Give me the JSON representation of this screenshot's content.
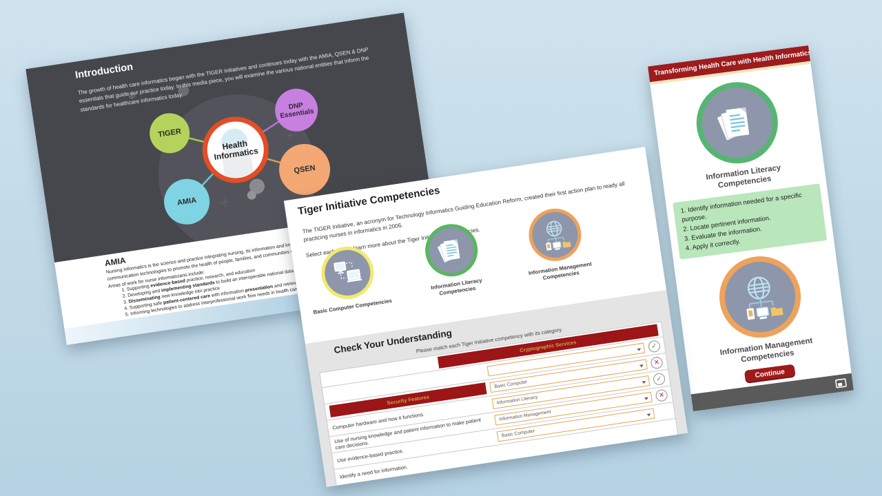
{
  "page": {
    "bg_top": "#cfe3ee",
    "bg_bottom": "#b5d2e2"
  },
  "intro_slide": {
    "heading": "Introduction",
    "body": "The growth of health care informatics began with the TIGER initiatives and continues today with the AMIA, QSEN & DNP essentials that guide our practice today. In this media piece, you will examine the various national entities that inform the standards for healthcare informatics today.",
    "slide_bg": "#46474d",
    "diagram": {
      "center_label": "Health Informatics",
      "center_ring_color": "#e44d26",
      "nodes": [
        {
          "label": "TIGER",
          "color": "#b5d35c"
        },
        {
          "label": "DNP Essentials",
          "color": "#c77fe0"
        },
        {
          "label": "QSEN",
          "color": "#f4a873"
        },
        {
          "label": "AMIA",
          "color": "#7fd4e4"
        }
      ]
    },
    "amia": {
      "heading": "AMIA",
      "intro": "Nursing Informatics is the science and practice integrating nursing, its information and knowledge, with management of information and communication technologies to promote the health of people, families, and communities worldwide.",
      "areas_label": "Areas of work for nurse informaticians include:",
      "items": [
        {
          "s0": "Supporting ",
          "b0": "evidence-based",
          "s1": " practice, research, and education",
          "b1": "",
          "s2": ""
        },
        {
          "s0": "Developing and ",
          "b0": "implementing standards",
          "s1": " to build an interoperable national data infrastructure",
          "b1": "",
          "s2": ""
        },
        {
          "s0": "",
          "b0": "Disseminating",
          "s1": " new knowledge into practice",
          "b1": "",
          "s2": ""
        },
        {
          "s0": "Supporting safe ",
          "b0": "patient-centered care",
          "s1": " with information ",
          "b1": "presentation",
          "s2": " and retrieval"
        },
        {
          "s0": "Informing technologies to address interprofessional work flow needs in health care",
          "b0": "",
          "s1": "",
          "b1": "",
          "s2": ""
        }
      ]
    }
  },
  "tiger_page": {
    "heading": "Tiger Initiative Competencies",
    "body": "The TIGER Initiative, an acronym for Technology Informatics Guiding Education Reform, created their first action plan to ready all practicing nurses in informatics in 2006.",
    "select_hint": "Select each link to learn more about the Tiger Initiative competencies.",
    "circle_fill": "#8d96ab",
    "competencies": [
      {
        "label": "Basic Computer Competencies",
        "ring_color": "#f2ea6e",
        "icon": "computers-icon"
      },
      {
        "label": "Information Literacy Competencies",
        "ring_color": "#58b85c",
        "icon": "documents-icon"
      },
      {
        "label": "Information Management Competencies",
        "ring_color": "#eea25b",
        "icon": "globe-network-icon"
      }
    ]
  },
  "quiz": {
    "heading": "Check Your Understanding",
    "instruction": "Please match each Tiger Initiative competency with its category.",
    "category_bar_1": "Cryptographic Services",
    "category_bar_2": "Security Features",
    "bar_bg": "#9c1517",
    "bar_text_color": "#cfa045",
    "correct_glyph": "✓",
    "incorrect_glyph": "✕",
    "correct_color": "#3a9d3a",
    "incorrect_color": "#d42a2a",
    "rows": [
      {
        "question": "",
        "answer": "",
        "result": "correct"
      },
      {
        "question": "",
        "answer": "Basic Computer",
        "result": "incorrect"
      },
      {
        "question": "Computer hardware and how it functions.",
        "answer": "Information Literacy",
        "result": "correct"
      },
      {
        "question": "Use of nursing knowledge and patient information to make patient care decisions.",
        "answer": "Information Management",
        "result": "incorrect"
      },
      {
        "question": "Use evidence-based practice.",
        "answer": "Basic Computer",
        "result": ""
      },
      {
        "question": "Identify a need for information.",
        "answer": "",
        "result": ""
      }
    ]
  },
  "info_card": {
    "header": "Transforming Health Care with Health Informatics",
    "literacy_heading": "Information Literacy Competencies",
    "literacy_steps": [
      "1. Identify information needed for a specific purpose.",
      "2. Locate pertinent information.",
      "3. Evaluate the information.",
      "4. Apply it correctly."
    ],
    "management_heading": "Information Management Competencies",
    "continue_label": "Continue",
    "colors": {
      "header_bg": "#9e1b1e",
      "accent_line": "#f2e5bd",
      "literacy_ring": "#57b573",
      "management_ring": "#eea25b",
      "circle_fill": "#8d96ab",
      "steps_bg": "#b9e6bb",
      "button_bg": "#a01a1a",
      "footer_bg": "#5a5a5a"
    }
  }
}
